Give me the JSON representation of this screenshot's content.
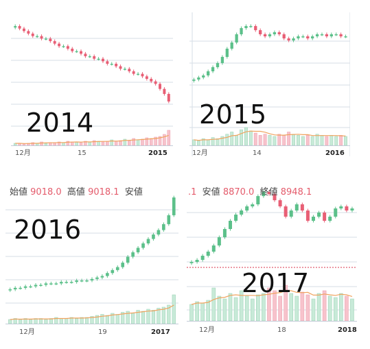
{
  "colors": {
    "up": "#5cc08a",
    "down": "#e85f75",
    "vol_up": "#c8ead8",
    "vol_down": "#f7c3cc",
    "ma": "#f0a35e",
    "grid": "#d6dde6",
    "dotted": "#d9334a"
  },
  "panels": [
    {
      "year_label": "2014",
      "x_ticks": [
        "12月",
        "15",
        "2015"
      ],
      "header": null,
      "chart_data": {
        "type": "candlestick",
        "closes": [
          62,
          61,
          60,
          59,
          58,
          58,
          57,
          57,
          56,
          55,
          54,
          54,
          53,
          52,
          52,
          51,
          50,
          50,
          49,
          49,
          48,
          47,
          47,
          46,
          45,
          45,
          44,
          43,
          43,
          42,
          41,
          40,
          39,
          37,
          35,
          32
        ],
        "volume": [
          3,
          3,
          2,
          3,
          4,
          3,
          5,
          3,
          4,
          4,
          5,
          4,
          6,
          5,
          5,
          4,
          6,
          5,
          7,
          6,
          5,
          6,
          8,
          6,
          7,
          9,
          7,
          10,
          8,
          9,
          11,
          10,
          12,
          13,
          16,
          22
        ]
      }
    },
    {
      "year_label": "2015",
      "x_ticks": [
        "12月",
        "14",
        "2016"
      ],
      "header": null,
      "chart_data": {
        "type": "candlestick",
        "closes": [
          40,
          41,
          42,
          44,
          46,
          48,
          51,
          55,
          58,
          62,
          65,
          66,
          66,
          64,
          62,
          61,
          62,
          63,
          62,
          60,
          59,
          60,
          61,
          61,
          60,
          61,
          62,
          62,
          61,
          62,
          62,
          61,
          61
        ],
        "volume": [
          5,
          4,
          6,
          5,
          7,
          6,
          8,
          10,
          12,
          9,
          14,
          16,
          13,
          11,
          9,
          10,
          9,
          8,
          10,
          9,
          12,
          10,
          9,
          8,
          9,
          8,
          10,
          9,
          8,
          9,
          8,
          9,
          8
        ]
      }
    },
    {
      "year_label": "2016",
      "x_ticks": [
        "12月",
        "19",
        "2017"
      ],
      "header": {
        "open_label": "始値",
        "open_value": "9018.0",
        "high_label": "高値",
        "high_value": "9018.1",
        "low_label": "安値"
      },
      "chart_data": {
        "type": "candlestick",
        "closes": [
          30,
          31,
          31,
          32,
          32,
          33,
          33,
          34,
          34,
          34,
          35,
          35,
          35,
          36,
          36,
          36,
          37,
          38,
          39,
          41,
          43,
          45,
          48,
          52,
          55,
          58,
          61,
          64,
          67,
          70,
          74,
          80,
          92
        ],
        "volume": [
          4,
          5,
          4,
          5,
          4,
          5,
          5,
          4,
          5,
          6,
          5,
          5,
          6,
          5,
          6,
          6,
          7,
          8,
          9,
          8,
          10,
          9,
          11,
          12,
          10,
          13,
          12,
          14,
          13,
          15,
          16,
          18,
          28
        ]
      }
    },
    {
      "year_label": "2017",
      "x_ticks": [
        "12月",
        "18",
        "2018"
      ],
      "header": {
        "prefix": ".1",
        "low_label": "安値",
        "low_value": "8870.0",
        "close_label": "終値",
        "close_value": "8948.1"
      },
      "chart_data": {
        "type": "candlestick",
        "closes": [
          30,
          31,
          33,
          35,
          38,
          42,
          46,
          50,
          53,
          55,
          57,
          58,
          62,
          64,
          63,
          60,
          57,
          52,
          55,
          58,
          55,
          50,
          52,
          54,
          50,
          52,
          56,
          57,
          55,
          56
        ],
        "volume": [
          12,
          14,
          13,
          15,
          24,
          18,
          16,
          20,
          17,
          22,
          18,
          16,
          19,
          20,
          24,
          22,
          18,
          26,
          20,
          18,
          21,
          19,
          16,
          20,
          22,
          18,
          17,
          20,
          18,
          16
        ]
      }
    }
  ]
}
